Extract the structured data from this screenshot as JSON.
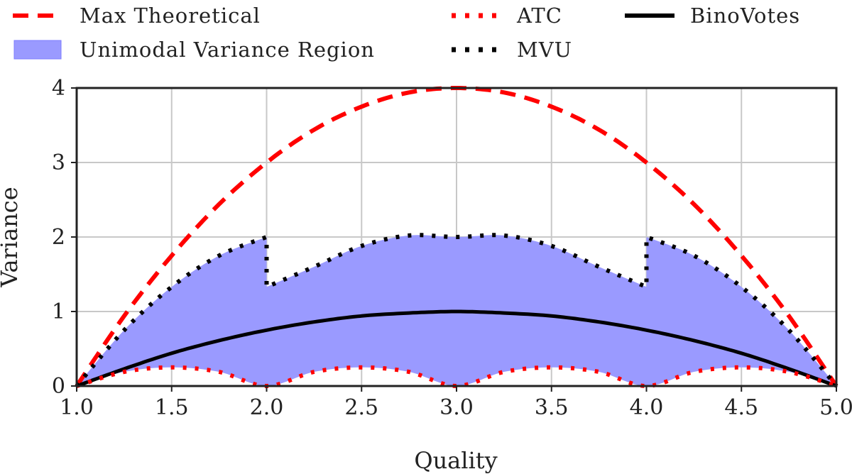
{
  "chart_data": {
    "type": "line",
    "title": "",
    "xlabel": "Quality",
    "ylabel": "Variance",
    "xlim": [
      1.0,
      5.0
    ],
    "ylim": [
      0,
      4
    ],
    "grid": true,
    "legend_position": "top",
    "x_ticks": [
      "1.0",
      "1.5",
      "2.0",
      "2.5",
      "3.0",
      "3.5",
      "4.0",
      "4.5",
      "5.0"
    ],
    "y_ticks": [
      "0",
      "1",
      "2",
      "3",
      "4"
    ],
    "colors": {
      "max_theoretical": "#ff0000",
      "atc": "#ff0000",
      "mvu": "#000000",
      "binovotes": "#000000",
      "region_fill": "#9a9aff"
    },
    "series": [
      {
        "name": "Max Theoretical",
        "style": "dashed",
        "x": [
          1.0,
          1.25,
          1.5,
          1.75,
          2.0,
          2.25,
          2.5,
          2.75,
          3.0,
          3.25,
          3.5,
          3.75,
          4.0,
          4.25,
          4.5,
          4.75,
          5.0
        ],
        "y": [
          0,
          0.94,
          1.75,
          2.44,
          3.0,
          3.44,
          3.75,
          3.94,
          4.0,
          3.94,
          3.75,
          3.44,
          3.0,
          2.44,
          1.75,
          0.94,
          0
        ]
      },
      {
        "name": "ATC",
        "style": "dotted",
        "x": [
          1.0,
          1.25,
          1.5,
          1.75,
          2.0,
          2.25,
          2.5,
          2.75,
          3.0,
          3.25,
          3.5,
          3.75,
          4.0,
          4.25,
          4.5,
          4.75,
          5.0
        ],
        "y": [
          0,
          0.19,
          0.25,
          0.19,
          0,
          0.19,
          0.25,
          0.19,
          0,
          0.19,
          0.25,
          0.19,
          0,
          0.19,
          0.25,
          0.19,
          0
        ]
      },
      {
        "name": "MVU",
        "style": "dotted",
        "x": [
          1.0,
          1.25,
          1.5,
          1.75,
          2.0,
          2.0,
          2.25,
          2.5,
          2.75,
          3.0,
          3.25,
          3.5,
          3.75,
          4.0,
          4.0,
          4.25,
          4.5,
          4.75,
          5.0
        ],
        "y": [
          0,
          0.75,
          1.33,
          1.75,
          2.0,
          1.33,
          1.6,
          1.88,
          2.02,
          2.0,
          2.02,
          1.88,
          1.6,
          1.33,
          2.0,
          1.75,
          1.33,
          0.75,
          0
        ]
      },
      {
        "name": "BinoVotes",
        "style": "solid",
        "x": [
          1.0,
          1.25,
          1.5,
          1.75,
          2.0,
          2.25,
          2.5,
          2.75,
          3.0,
          3.25,
          3.5,
          3.75,
          4.0,
          4.25,
          4.5,
          4.75,
          5.0
        ],
        "y": [
          0,
          0.23,
          0.44,
          0.61,
          0.75,
          0.86,
          0.94,
          0.98,
          1.0,
          0.98,
          0.94,
          0.86,
          0.75,
          0.61,
          0.44,
          0.23,
          0
        ]
      }
    ],
    "region": {
      "name": "Unimodal Variance Region",
      "lower": "ATC",
      "upper": "MVU"
    },
    "legend": [
      {
        "label": "Max Theoretical",
        "key": "max_theoretical"
      },
      {
        "label": "Unimodal Variance Region",
        "key": "region"
      },
      {
        "label": "ATC",
        "key": "atc"
      },
      {
        "label": "MVU",
        "key": "mvu"
      },
      {
        "label": "BinoVotes",
        "key": "binovotes"
      }
    ]
  }
}
